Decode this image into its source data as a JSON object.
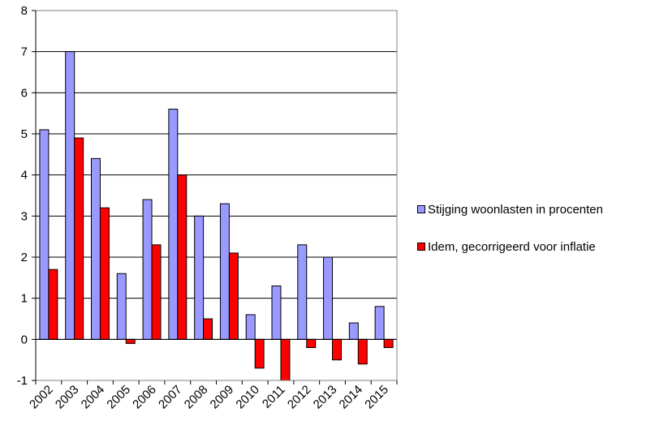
{
  "chart_data": {
    "type": "bar",
    "categories": [
      "2002",
      "2003",
      "2004",
      "2005",
      "2006",
      "2007",
      "2008",
      "2009",
      "2010",
      "2011",
      "2012",
      "2013",
      "2014",
      "2015"
    ],
    "series": [
      {
        "name": "Stijging woonlasten in procenten",
        "color": "#9999ff",
        "values": [
          5.1,
          7.0,
          4.4,
          1.6,
          3.4,
          5.6,
          3.0,
          3.3,
          0.6,
          1.3,
          2.3,
          2.0,
          0.4,
          0.8
        ]
      },
      {
        "name": "Idem, gecorrigeerd voor inflatie",
        "color": "#ff0000",
        "values": [
          1.7,
          4.9,
          3.2,
          -0.1,
          2.3,
          4.0,
          0.5,
          2.1,
          -0.7,
          -1.0,
          -0.2,
          -0.5,
          -0.6,
          -0.2
        ]
      }
    ],
    "yticks": [
      "-1",
      "0",
      "1",
      "2",
      "3",
      "4",
      "5",
      "6",
      "7",
      "8"
    ],
    "ylim": [
      -1,
      8
    ],
    "title": "",
    "xlabel": "",
    "ylabel": "",
    "grid": "horizontal",
    "legend_position": "right"
  }
}
